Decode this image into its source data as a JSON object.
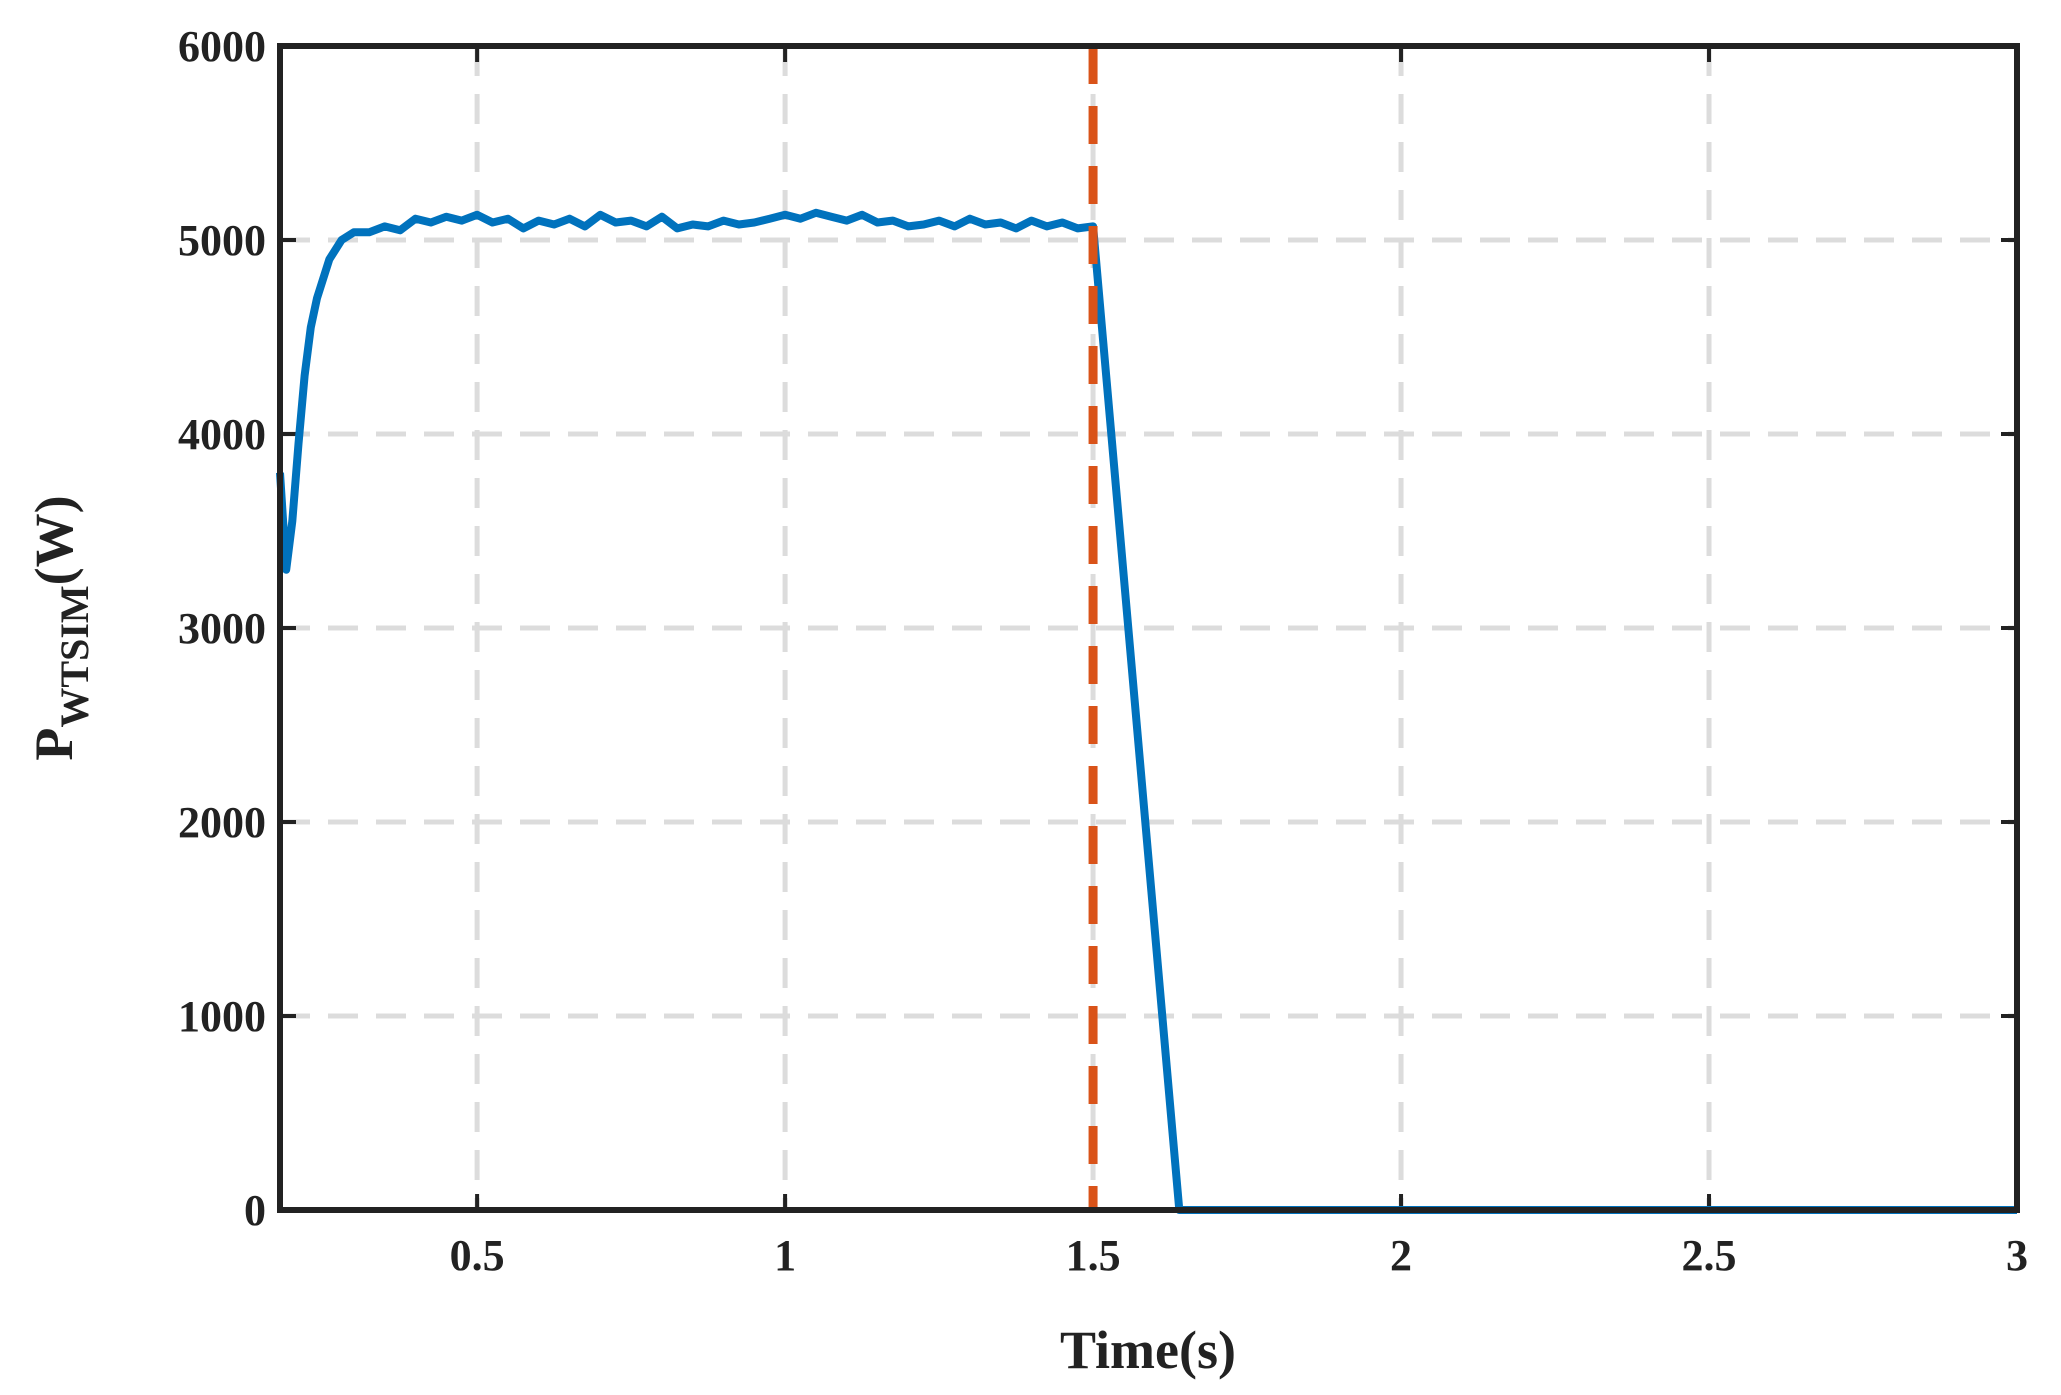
{
  "chart_data": {
    "type": "line",
    "x_label": "Time(s)",
    "y_label": "P",
    "y_label_subscript": "WTSIM",
    "y_label_suffix": "(W)",
    "x": [
      0.18,
      0.19,
      0.2,
      0.21,
      0.22,
      0.23,
      0.24,
      0.26,
      0.28,
      0.3,
      0.325,
      0.35,
      0.375,
      0.4,
      0.425,
      0.45,
      0.475,
      0.5,
      0.525,
      0.55,
      0.575,
      0.6,
      0.625,
      0.65,
      0.675,
      0.7,
      0.725,
      0.75,
      0.775,
      0.8,
      0.825,
      0.85,
      0.875,
      0.9,
      0.925,
      0.95,
      0.975,
      1,
      1.025,
      1.05,
      1.075,
      1.1,
      1.125,
      1.15,
      1.175,
      1.2,
      1.225,
      1.25,
      1.275,
      1.3,
      1.325,
      1.35,
      1.375,
      1.4,
      1.425,
      1.45,
      1.475,
      1.5,
      1.64,
      3
    ],
    "series": [
      {
        "color": "#0072bd",
        "values": [
          3800,
          3300,
          3550,
          3950,
          4300,
          4550,
          4700,
          4900,
          5000,
          5040,
          5040,
          5070,
          5050,
          5110,
          5090,
          5120,
          5100,
          5130,
          5090,
          5110,
          5060,
          5100,
          5080,
          5110,
          5070,
          5130,
          5090,
          5100,
          5070,
          5120,
          5060,
          5080,
          5070,
          5100,
          5080,
          5090,
          5110,
          5130,
          5110,
          5140,
          5120,
          5100,
          5130,
          5090,
          5100,
          5070,
          5080,
          5100,
          5070,
          5110,
          5080,
          5090,
          5060,
          5100,
          5070,
          5090,
          5060,
          5070,
          0,
          0
        ]
      }
    ],
    "vline": {
      "x": 1.5,
      "color": "#d95319"
    },
    "xlim": [
      0.18,
      3
    ],
    "ylim": [
      0,
      6000
    ],
    "xticks": [
      0.5,
      1,
      1.5,
      2,
      2.5,
      3
    ],
    "yticks": [
      0,
      1000,
      2000,
      3000,
      4000,
      5000,
      6000
    ],
    "grid": true
  }
}
